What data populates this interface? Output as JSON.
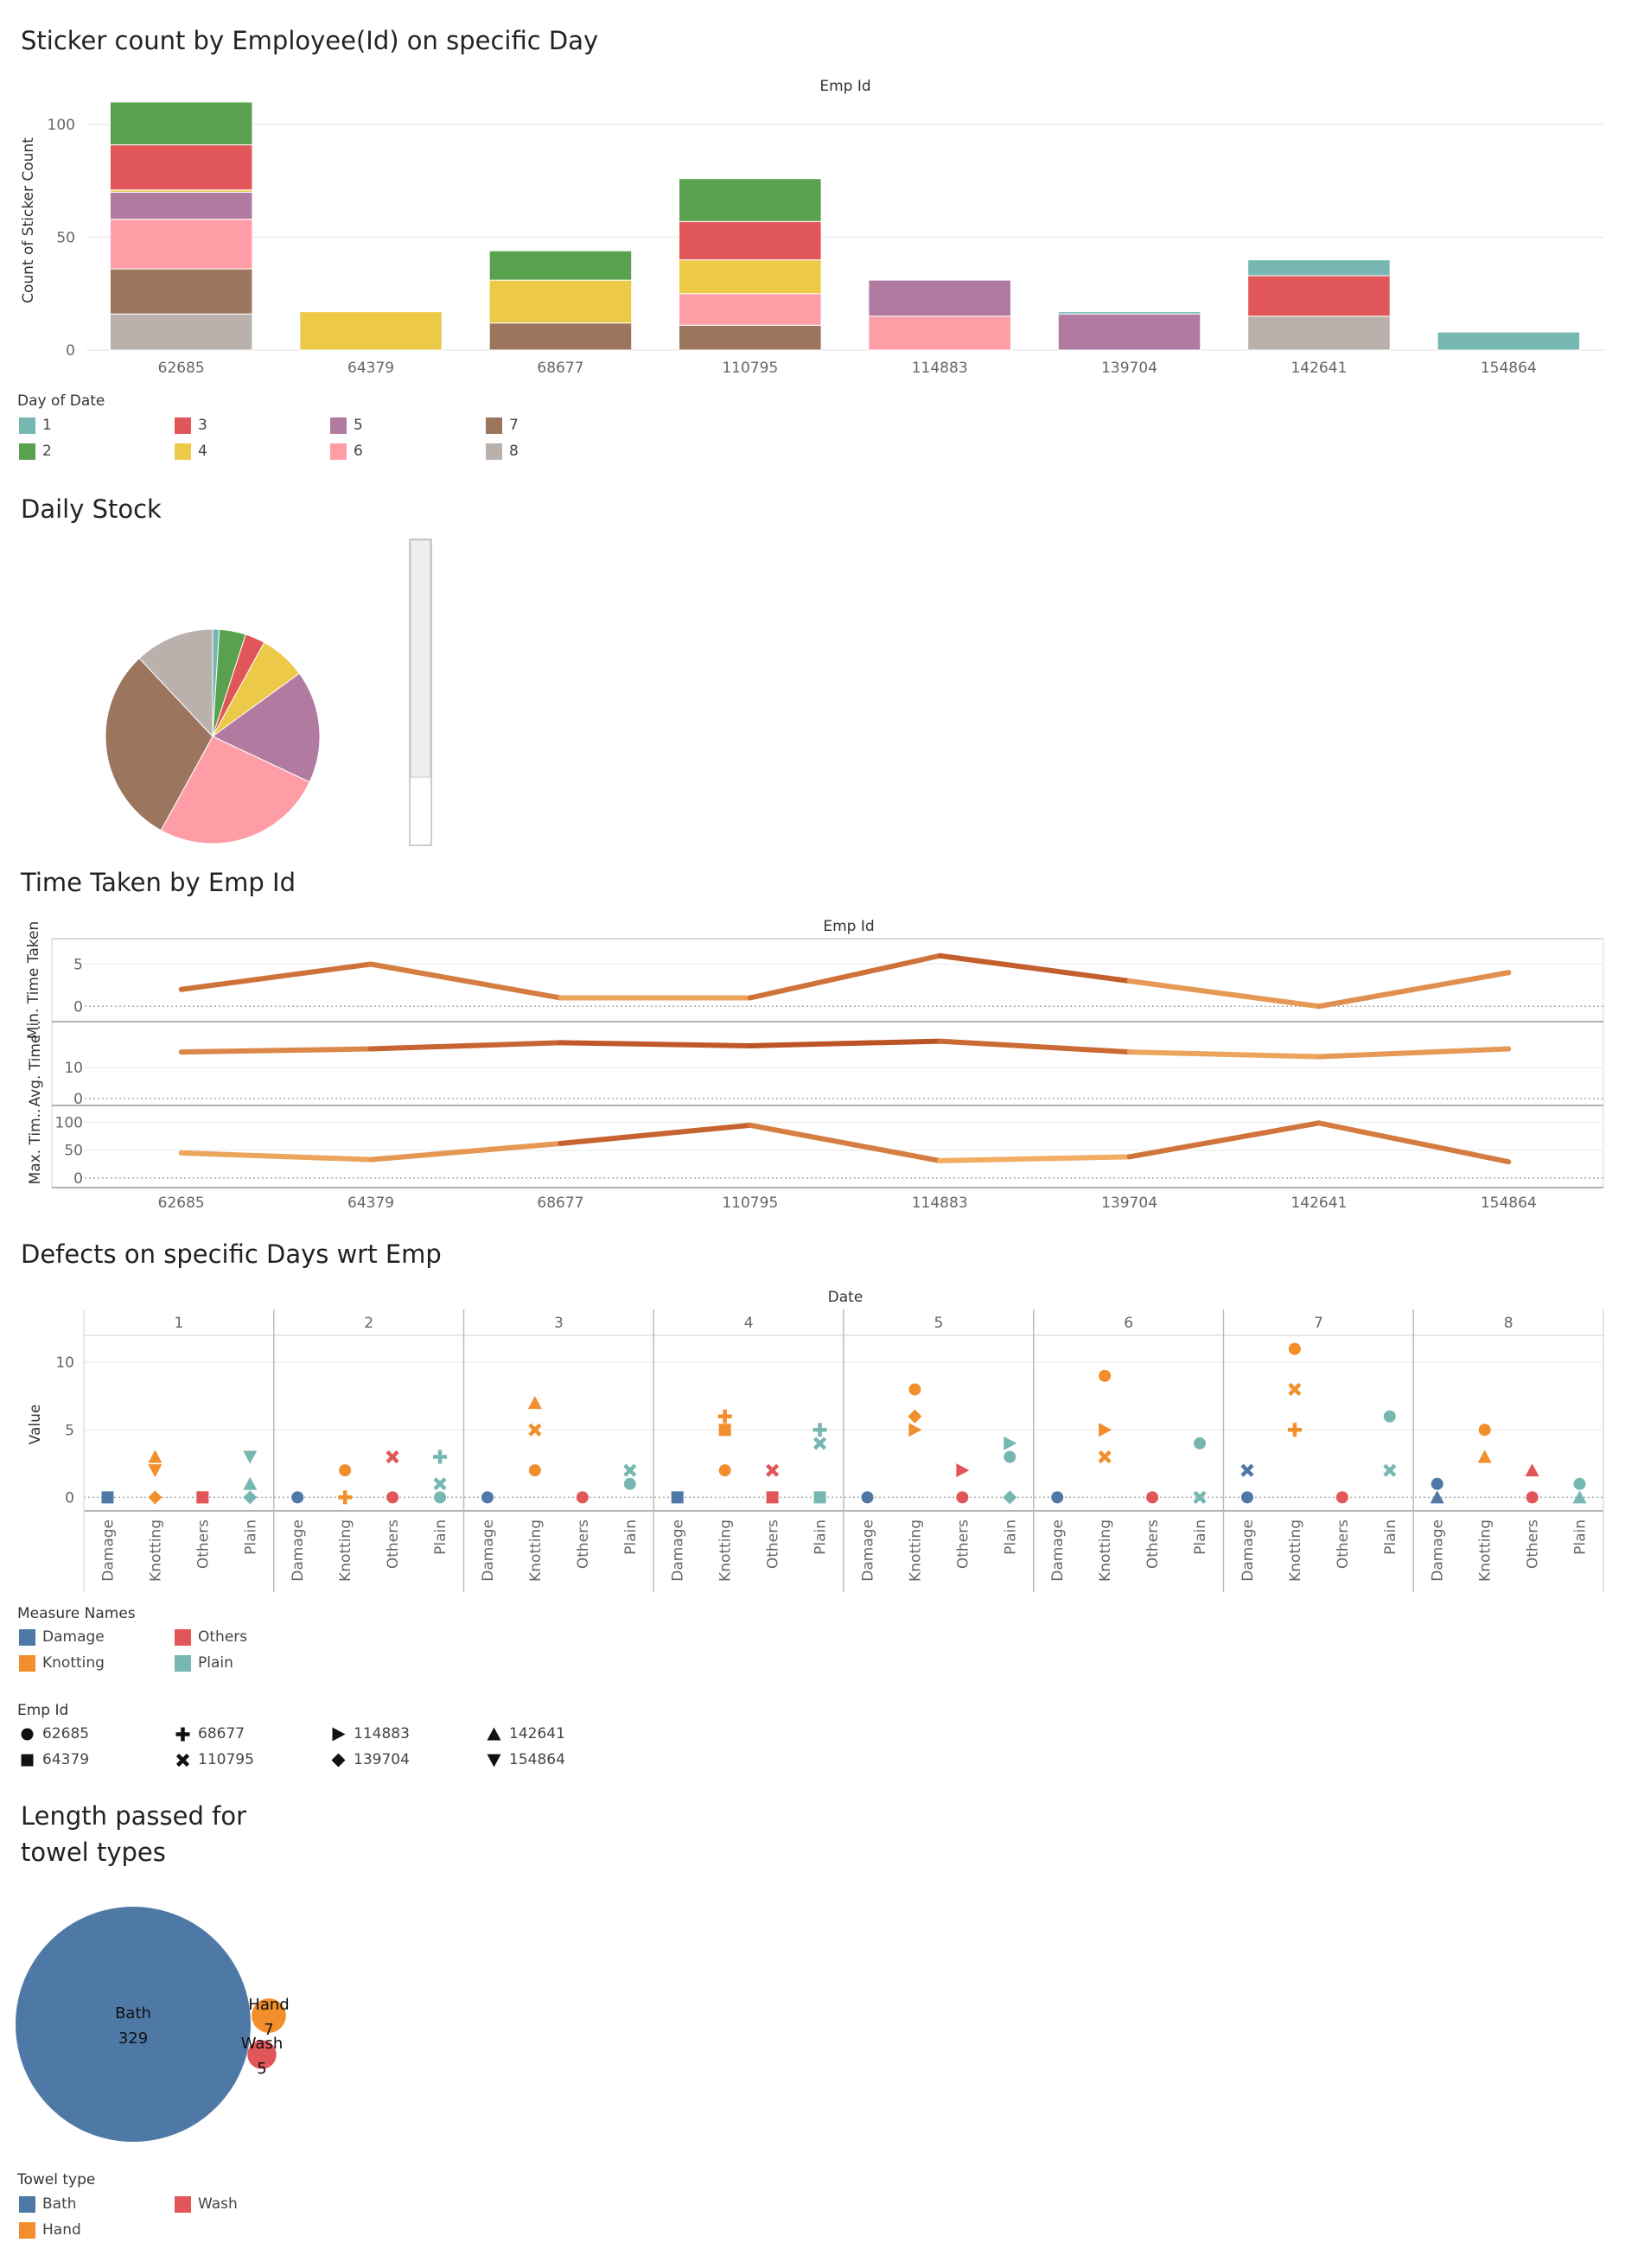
{
  "titles": {
    "sticker": "Sticker count by Employee(Id) on specific Day",
    "stock": "Daily Stock",
    "time": "Time Taken by Emp Id",
    "defects": "Defects on specific Days wrt Emp",
    "length_line1": "Length passed for",
    "length_line2": "towel types"
  },
  "colors": {
    "day": {
      "1": "#76b7b2",
      "2": "#59a14f",
      "3": "#e15759",
      "4": "#edc948",
      "5": "#b07aa1",
      "6": "#ff9da7",
      "7": "#9c755f",
      "8": "#bab0ac"
    },
    "measure": {
      "Damage": "#4e79a7",
      "Knotting": "#f28e2b",
      "Others": "#e15759",
      "Plain": "#76b7b2"
    },
    "towel": {
      "Bath": "#4e79a7",
      "Hand": "#f28e2b",
      "Wash": "#e15759"
    }
  },
  "legends": {
    "day_title": "Day of Date",
    "days": [
      "1",
      "2",
      "3",
      "4",
      "5",
      "6",
      "7",
      "8"
    ],
    "measure_title": "Measure Names",
    "measures": [
      "Damage",
      "Others",
      "Knotting",
      "Plain"
    ],
    "emp_title": "Emp Id",
    "emps": [
      {
        "label": "62685",
        "shape": "circle"
      },
      {
        "label": "68677",
        "shape": "plus"
      },
      {
        "label": "114883",
        "shape": "triangle-right"
      },
      {
        "label": "142641",
        "shape": "triangle-up"
      },
      {
        "label": "64379",
        "shape": "square"
      },
      {
        "label": "110795",
        "shape": "cross"
      },
      {
        "label": "139704",
        "shape": "diamond"
      },
      {
        "label": "154864",
        "shape": "triangle-down"
      }
    ],
    "towel_title": "Towel type",
    "towels": [
      "Bath",
      "Wash",
      "Hand"
    ]
  },
  "chart_data": [
    {
      "type": "bar",
      "stacked": true,
      "title": "Sticker count by Employee(Id) on specific Day",
      "column_header": "Emp Id",
      "ylabel": "Count of Sticker Count",
      "ylim": [
        0,
        110
      ],
      "yticks": [
        0,
        50,
        100
      ],
      "categories": [
        "62685",
        "64379",
        "68677",
        "110795",
        "114883",
        "139704",
        "142641",
        "154864"
      ],
      "stack_order": [
        "8",
        "7",
        "6",
        "5",
        "4",
        "3",
        "2",
        "1"
      ],
      "series": [
        {
          "name": "1",
          "values": [
            0,
            0,
            0,
            0,
            0,
            1,
            7,
            8
          ]
        },
        {
          "name": "2",
          "values": [
            19,
            0,
            13,
            19,
            0,
            0,
            0,
            0
          ]
        },
        {
          "name": "3",
          "values": [
            20,
            0,
            0,
            17,
            0,
            0,
            18,
            0
          ]
        },
        {
          "name": "4",
          "values": [
            1,
            17,
            19,
            15,
            0,
            0,
            0,
            0
          ]
        },
        {
          "name": "5",
          "values": [
            12,
            0,
            0,
            0,
            16,
            16,
            0,
            0
          ]
        },
        {
          "name": "6",
          "values": [
            22,
            0,
            0,
            14,
            15,
            0,
            0,
            0
          ]
        },
        {
          "name": "7",
          "values": [
            20,
            0,
            12,
            11,
            0,
            0,
            0,
            0
          ]
        },
        {
          "name": "8",
          "values": [
            16,
            0,
            0,
            0,
            0,
            0,
            15,
            0
          ]
        }
      ],
      "grid": true,
      "legend": "bottom-left"
    },
    {
      "type": "pie",
      "title": "Daily Stock",
      "slices": [
        {
          "label": "1",
          "value": 1
        },
        {
          "label": "2",
          "value": 4
        },
        {
          "label": "3",
          "value": 3
        },
        {
          "label": "4",
          "value": 7
        },
        {
          "label": "5",
          "value": 17
        },
        {
          "label": "6",
          "value": 26
        },
        {
          "label": "7",
          "value": 30
        },
        {
          "label": "8",
          "value": 12
        }
      ],
      "slider_level": 0.22
    },
    {
      "type": "line",
      "title": "Time Taken by Emp Id",
      "column_header": "Emp Id",
      "x": [
        "62685",
        "64379",
        "68677",
        "110795",
        "114883",
        "139704",
        "142641",
        "154864"
      ],
      "panels": [
        {
          "ylabel": "Min. Time Taken",
          "ylim": [
            -1,
            7
          ],
          "yticks": [
            0,
            5
          ],
          "values": [
            2,
            5,
            1,
            1,
            6,
            3,
            0,
            4
          ]
        },
        {
          "ylabel": "Avg. Time ..",
          "ylim": [
            0,
            22
          ],
          "yticks": [
            0,
            10
          ],
          "values": [
            15,
            16,
            18,
            17,
            18.5,
            15,
            13.5,
            16
          ]
        },
        {
          "ylabel": "Max. Tim..",
          "ylim": [
            -5,
            115
          ],
          "yticks": [
            0,
            50,
            100
          ],
          "values": [
            45,
            33,
            62,
            95,
            31,
            38,
            99,
            29
          ]
        }
      ],
      "grid": true
    },
    {
      "type": "scatter",
      "title": "Defects on specific Days wrt Emp",
      "column_header": "Date",
      "ylabel": "Value",
      "ylim": [
        -1,
        12
      ],
      "yticks": [
        0,
        5,
        10
      ],
      "dates": [
        "1",
        "2",
        "3",
        "4",
        "5",
        "6",
        "7",
        "8"
      ],
      "measures": [
        "Damage",
        "Knotting",
        "Others",
        "Plain"
      ],
      "points": [
        {
          "date": "1",
          "measure": "Damage",
          "emp": "62685",
          "value": 0
        },
        {
          "date": "1",
          "measure": "Damage",
          "emp": "64379",
          "value": 0
        },
        {
          "date": "1",
          "measure": "Knotting",
          "emp": "142641",
          "value": 3
        },
        {
          "date": "1",
          "measure": "Knotting",
          "emp": "154864",
          "value": 2
        },
        {
          "date": "1",
          "measure": "Knotting",
          "emp": "139704",
          "value": 0
        },
        {
          "date": "1",
          "measure": "Others",
          "emp": "110795",
          "value": 0
        },
        {
          "date": "1",
          "measure": "Others",
          "emp": "64379",
          "value": 0
        },
        {
          "date": "1",
          "measure": "Plain",
          "emp": "154864",
          "value": 3
        },
        {
          "date": "1",
          "measure": "Plain",
          "emp": "142641",
          "value": 1
        },
        {
          "date": "1",
          "measure": "Plain",
          "emp": "139704",
          "value": 0
        },
        {
          "date": "2",
          "measure": "Damage",
          "emp": "62685",
          "value": 0
        },
        {
          "date": "2",
          "measure": "Knotting",
          "emp": "62685",
          "value": 2
        },
        {
          "date": "2",
          "measure": "Knotting",
          "emp": "68677",
          "value": 0
        },
        {
          "date": "2",
          "measure": "Others",
          "emp": "110795",
          "value": 3
        },
        {
          "date": "2",
          "measure": "Others",
          "emp": "62685",
          "value": 0
        },
        {
          "date": "2",
          "measure": "Plain",
          "emp": "68677",
          "value": 3
        },
        {
          "date": "2",
          "measure": "Plain",
          "emp": "110795",
          "value": 1
        },
        {
          "date": "2",
          "measure": "Plain",
          "emp": "62685",
          "value": 0
        },
        {
          "date": "3",
          "measure": "Damage",
          "emp": "62685",
          "value": 0
        },
        {
          "date": "3",
          "measure": "Knotting",
          "emp": "142641",
          "value": 7
        },
        {
          "date": "3",
          "measure": "Knotting",
          "emp": "110795",
          "value": 5
        },
        {
          "date": "3",
          "measure": "Knotting",
          "emp": "62685",
          "value": 2
        },
        {
          "date": "3",
          "measure": "Others",
          "emp": "62685",
          "value": 0
        },
        {
          "date": "3",
          "measure": "Plain",
          "emp": "110795",
          "value": 2
        },
        {
          "date": "3",
          "measure": "Plain",
          "emp": "62685",
          "value": 1
        },
        {
          "date": "4",
          "measure": "Damage",
          "emp": "64379",
          "value": 0
        },
        {
          "date": "4",
          "measure": "Knotting",
          "emp": "68677",
          "value": 6
        },
        {
          "date": "4",
          "measure": "Knotting",
          "emp": "64379",
          "value": 5
        },
        {
          "date": "4",
          "measure": "Knotting",
          "emp": "62685",
          "value": 2
        },
        {
          "date": "4",
          "measure": "Others",
          "emp": "110795",
          "value": 2
        },
        {
          "date": "4",
          "measure": "Others",
          "emp": "64379",
          "value": 0
        },
        {
          "date": "4",
          "measure": "Plain",
          "emp": "68677",
          "value": 5
        },
        {
          "date": "4",
          "measure": "Plain",
          "emp": "110795",
          "value": 4
        },
        {
          "date": "4",
          "measure": "Plain",
          "emp": "64379",
          "value": 0
        },
        {
          "date": "5",
          "measure": "Damage",
          "emp": "62685",
          "value": 0
        },
        {
          "date": "5",
          "measure": "Knotting",
          "emp": "62685",
          "value": 8
        },
        {
          "date": "5",
          "measure": "Knotting",
          "emp": "139704",
          "value": 6
        },
        {
          "date": "5",
          "measure": "Knotting",
          "emp": "114883",
          "value": 5
        },
        {
          "date": "5",
          "measure": "Others",
          "emp": "114883",
          "value": 2
        },
        {
          "date": "5",
          "measure": "Others",
          "emp": "62685",
          "value": 0
        },
        {
          "date": "5",
          "measure": "Plain",
          "emp": "114883",
          "value": 4
        },
        {
          "date": "5",
          "measure": "Plain",
          "emp": "62685",
          "value": 3
        },
        {
          "date": "5",
          "measure": "Plain",
          "emp": "139704",
          "value": 0
        },
        {
          "date": "6",
          "measure": "Damage",
          "emp": "62685",
          "value": 0
        },
        {
          "date": "6",
          "measure": "Knotting",
          "emp": "62685",
          "value": 9
        },
        {
          "date": "6",
          "measure": "Knotting",
          "emp": "114883",
          "value": 5
        },
        {
          "date": "6",
          "measure": "Knotting",
          "emp": "110795",
          "value": 3
        },
        {
          "date": "6",
          "measure": "Others",
          "emp": "62685",
          "value": 0
        },
        {
          "date": "6",
          "measure": "Plain",
          "emp": "62685",
          "value": 4
        },
        {
          "date": "6",
          "measure": "Plain",
          "emp": "110795",
          "value": 0
        },
        {
          "date": "7",
          "measure": "Damage",
          "emp": "110795",
          "value": 2
        },
        {
          "date": "7",
          "measure": "Damage",
          "emp": "62685",
          "value": 0
        },
        {
          "date": "7",
          "measure": "Knotting",
          "emp": "62685",
          "value": 11
        },
        {
          "date": "7",
          "measure": "Knotting",
          "emp": "110795",
          "value": 8
        },
        {
          "date": "7",
          "measure": "Knotting",
          "emp": "68677",
          "value": 5
        },
        {
          "date": "7",
          "measure": "Others",
          "emp": "62685",
          "value": 0
        },
        {
          "date": "7",
          "measure": "Plain",
          "emp": "62685",
          "value": 6
        },
        {
          "date": "7",
          "measure": "Plain",
          "emp": "110795",
          "value": 2
        },
        {
          "date": "8",
          "measure": "Damage",
          "emp": "62685",
          "value": 1
        },
        {
          "date": "8",
          "measure": "Damage",
          "emp": "142641",
          "value": 0
        },
        {
          "date": "8",
          "measure": "Knotting",
          "emp": "62685",
          "value": 5
        },
        {
          "date": "8",
          "measure": "Knotting",
          "emp": "142641",
          "value": 3
        },
        {
          "date": "8",
          "measure": "Others",
          "emp": "142641",
          "value": 2
        },
        {
          "date": "8",
          "measure": "Others",
          "emp": "62685",
          "value": 0
        },
        {
          "date": "8",
          "measure": "Plain",
          "emp": "62685",
          "value": 1
        },
        {
          "date": "8",
          "measure": "Plain",
          "emp": "142641",
          "value": 0
        }
      ],
      "grid": true
    },
    {
      "type": "bubble",
      "title": "Length passed for towel types",
      "bubbles": [
        {
          "label": "Bath",
          "value": 329
        },
        {
          "label": "Hand",
          "value": 7
        },
        {
          "label": "Wash",
          "value": 5
        }
      ]
    }
  ]
}
